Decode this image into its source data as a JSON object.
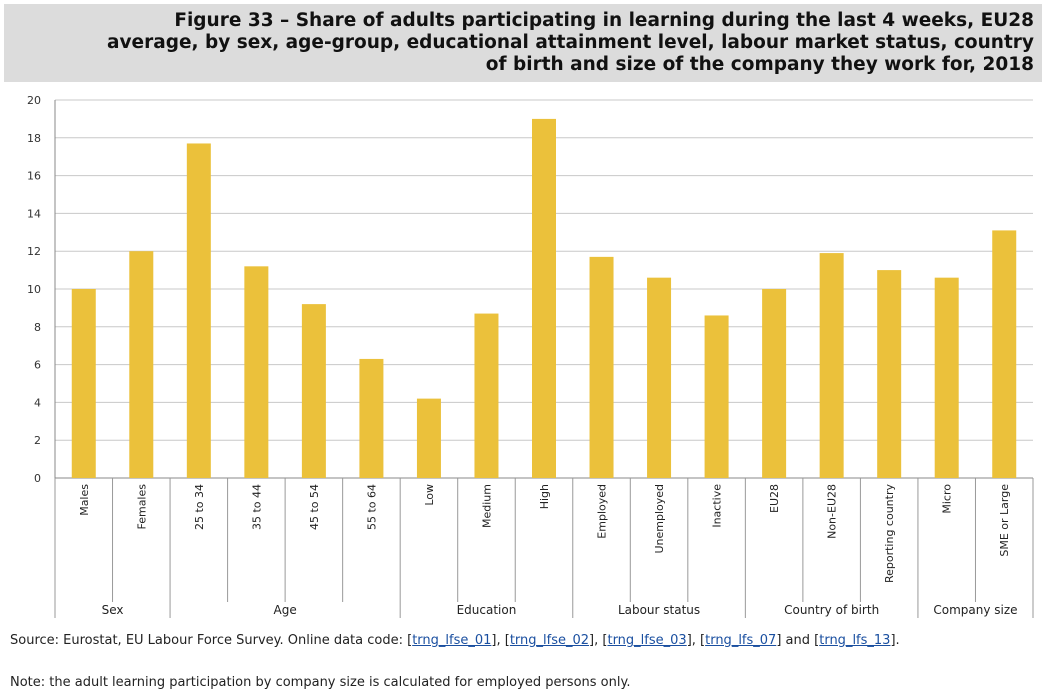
{
  "title": "Figure 33 – Share of adults participating in learning during the last 4 weeks, EU28\naverage, by sex, age-group, educational attainment level, labour market status, country\nof birth and size of the company they work for, 2018",
  "chart_data": {
    "type": "bar",
    "categories": [
      "Males",
      "Females",
      "25 to 34",
      "35 to 44",
      "45 to 54",
      "55 to 64",
      "Low",
      "Medium",
      "High",
      "Employed",
      "Unemployed",
      "Inactive",
      "EU28",
      "Non-EU28",
      "Reporting country",
      "Micro",
      "SME or Large"
    ],
    "values": [
      10.0,
      12.0,
      17.7,
      11.2,
      9.2,
      6.3,
      4.2,
      8.7,
      19.0,
      11.7,
      10.6,
      8.6,
      10.0,
      11.9,
      11.0,
      10.6,
      13.1
    ],
    "groups": [
      {
        "label": "Sex",
        "count": 2
      },
      {
        "label": "Age",
        "count": 4
      },
      {
        "label": "Education",
        "count": 3
      },
      {
        "label": "Labour status",
        "count": 3
      },
      {
        "label": "Country of birth",
        "count": 3
      },
      {
        "label": "Company size",
        "count": 2
      }
    ],
    "yticks": [
      "0",
      "2",
      "4",
      "6",
      "8",
      "10",
      "12",
      "14",
      "16",
      "18",
      "20"
    ],
    "ylim": [
      0,
      20
    ],
    "grid": true,
    "bar_color": "#ebc13b"
  },
  "source": {
    "prefix": "Source: Eurostat, EU Labour Force Survey. Online data code: ",
    "codes": [
      "trng_lfse_01",
      "trng_lfse_02",
      "trng_lfse_03",
      "trng_lfs_07",
      "trng_lfs_13"
    ],
    "and_word": "and"
  },
  "note": "Note: the adult learning participation by company size is calculated for employed persons only."
}
